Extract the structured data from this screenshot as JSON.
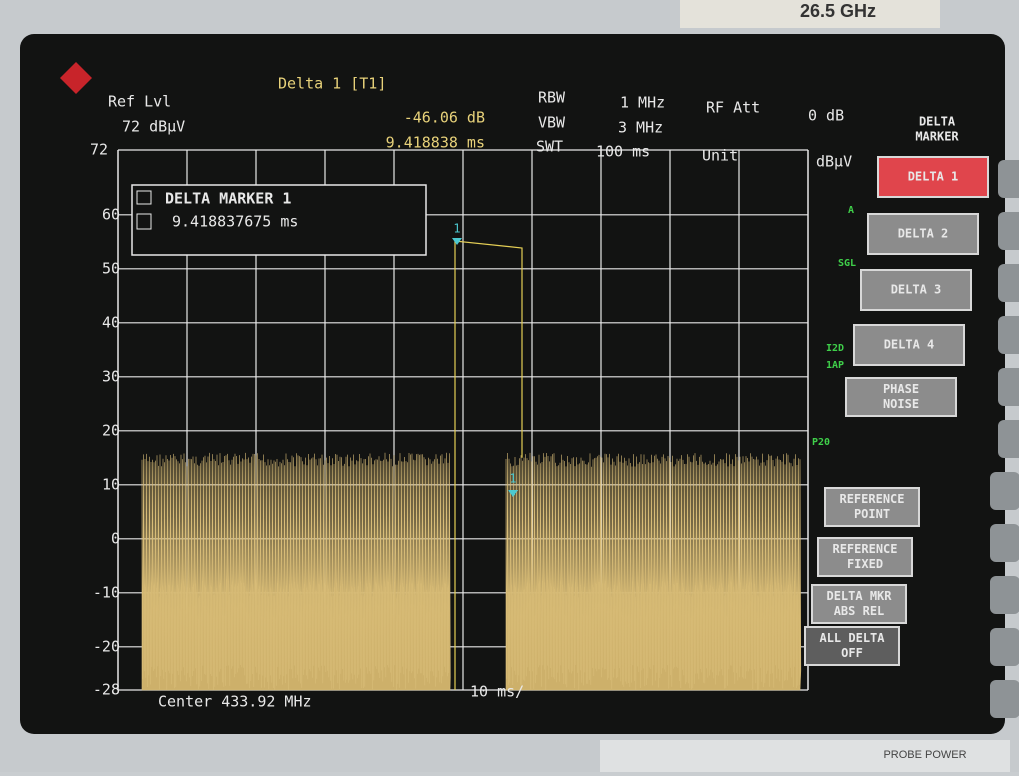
{
  "header": {
    "ref_label": "Ref Lvl",
    "ref_value": "72 dBµV",
    "marker_title": "Delta 1 [T1]",
    "marker_level": "-46.06 dB",
    "marker_time": "9.418838 ms",
    "rbw_label": "RBW",
    "rbw_value": "1 MHz",
    "vbw_label": "VBW",
    "vbw_value": "3 MHz",
    "swt_label": "SWT",
    "swt_value": "100 ms",
    "rf_att_label": "RF Att",
    "rf_att_value": "0 dB",
    "unit_label": "Unit",
    "unit_value": "dBµV"
  },
  "marker_box": {
    "title": "DELTA MARKER 1",
    "value": "9.418837675 ms"
  },
  "y_axis": [
    "72",
    "60",
    "50",
    "40",
    "30",
    "20",
    "10",
    "0",
    "-10",
    "-20",
    "-28"
  ],
  "markers": [
    "1",
    "1"
  ],
  "side_labels": [
    "A",
    "SGL",
    "I2D",
    "1AP",
    "P20"
  ],
  "softkeys": {
    "title": [
      "DELTA",
      "MARKER"
    ],
    "items": [
      {
        "lines": [
          "DELTA 1"
        ]
      },
      {
        "lines": [
          "DELTA 2"
        ]
      },
      {
        "lines": [
          "DELTA 3"
        ]
      },
      {
        "lines": [
          "DELTA 4"
        ]
      },
      {
        "lines": [
          "PHASE",
          "NOISE"
        ]
      },
      {
        "lines": [
          "REFERENCE",
          "POINT"
        ]
      },
      {
        "lines": [
          "REFERENCE",
          "FIXED"
        ]
      },
      {
        "lines": [
          "DELTA MKR",
          "ABS  REL"
        ]
      },
      {
        "lines": [
          "ALL DELTA",
          "OFF"
        ]
      }
    ]
  },
  "footer": {
    "center": "Center 433.92 MHz",
    "span": "10 ms/"
  },
  "bezel": {
    "top_tag": "26.5 GHz",
    "probe_power": "PROBE POWER"
  }
}
